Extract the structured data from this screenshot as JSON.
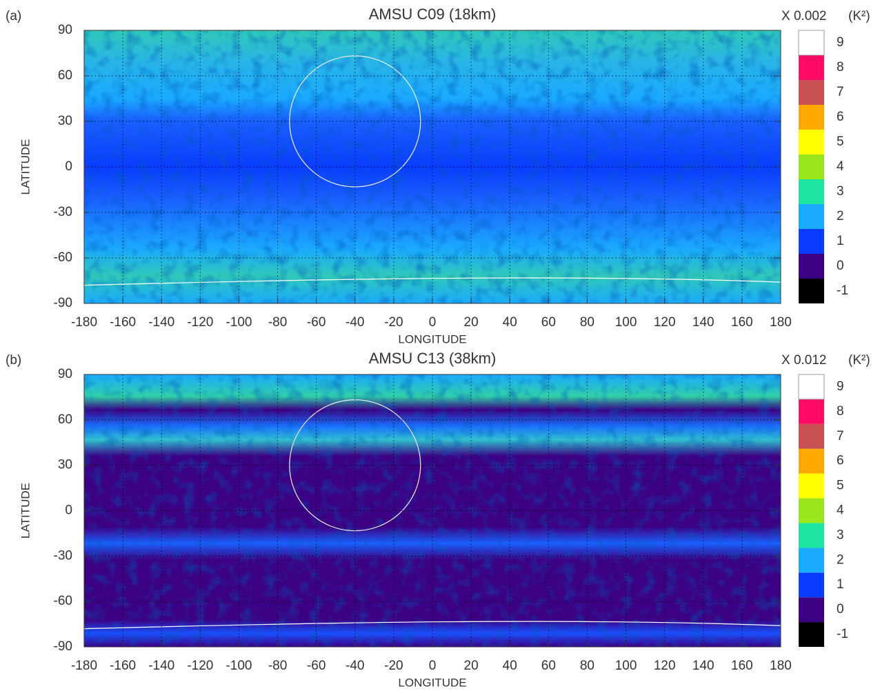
{
  "chart_data": [
    {
      "type": "heatmap",
      "panel_label": "(a)",
      "title": "AMSU C09 (18km)",
      "xlabel": "LONGITUDE",
      "ylabel": "LATITUDE",
      "xlim": [
        -180,
        180
      ],
      "xticks": [
        -180,
        -160,
        -140,
        -120,
        -100,
        -80,
        -60,
        -40,
        -20,
        0,
        20,
        40,
        60,
        80,
        100,
        120,
        140,
        160,
        180
      ],
      "ylim": [
        -90,
        90
      ],
      "yticks": [
        -90,
        -60,
        -30,
        0,
        30,
        60,
        90
      ],
      "grid": true,
      "colorbar": {
        "scale": "X 0.002",
        "unit": "(K²)",
        "levels": [
          -1,
          0,
          1,
          2,
          3,
          4,
          5,
          6,
          7,
          8,
          9
        ],
        "colors": [
          "#000000",
          "#3c0082",
          "#0a3cff",
          "#1aaaff",
          "#1ee6a0",
          "#9be61e",
          "#ffff00",
          "#ffaa00",
          "#c85050",
          "#ff0a64",
          "#ffffff"
        ]
      }
    },
    {
      "type": "heatmap",
      "panel_label": "(b)",
      "title": "AMSU C13 (38km)",
      "xlabel": "LONGITUDE",
      "ylabel": "LATITUDE",
      "xlim": [
        -180,
        180
      ],
      "xticks": [
        -180,
        -160,
        -140,
        -120,
        -100,
        -80,
        -60,
        -40,
        -20,
        0,
        20,
        40,
        60,
        80,
        100,
        120,
        140,
        160,
        180
      ],
      "ylim": [
        -90,
        90
      ],
      "yticks": [
        -90,
        -60,
        -30,
        0,
        30,
        60,
        90
      ],
      "grid": true,
      "colorbar": {
        "scale": "X 0.012",
        "unit": "(K²)",
        "levels": [
          -1,
          0,
          1,
          2,
          3,
          4,
          5,
          6,
          7,
          8,
          9
        ],
        "colors": [
          "#000000",
          "#3c0082",
          "#0a3cff",
          "#1aaaff",
          "#1ee6a0",
          "#9be61e",
          "#ffff00",
          "#ffaa00",
          "#c85050",
          "#ff0a64",
          "#ffffff"
        ]
      }
    }
  ]
}
